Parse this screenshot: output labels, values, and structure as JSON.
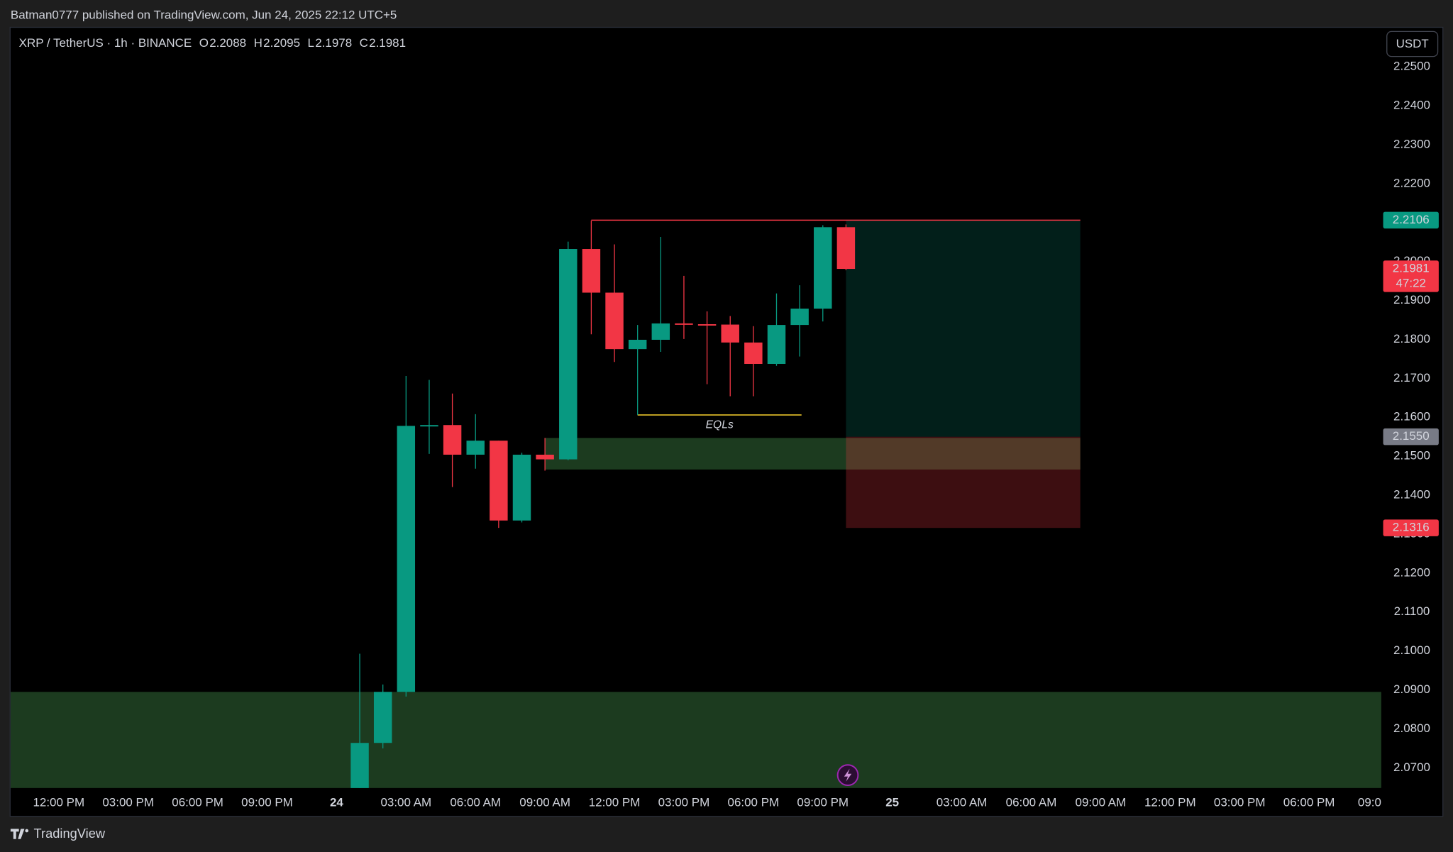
{
  "header": {
    "publisher": "Batman0777 published on TradingView.com, Jun 24, 2025 22:12 UTC+5"
  },
  "footer": {
    "brand": "TradingView"
  },
  "chart_data": {
    "type": "candlestick",
    "title": "XRP / TetherUS · 1h · BINANCE",
    "ohlc_labels": [
      "O",
      "H",
      "L",
      "C"
    ],
    "currency": "USDT",
    "countdown": "47:22",
    "up_color": "#089981",
    "down_color": "#f23645",
    "x": [
      1,
      2,
      3,
      4,
      5,
      6,
      7,
      8,
      9,
      10,
      11,
      12,
      13,
      14,
      15,
      16,
      17,
      18,
      19,
      20,
      21,
      22
    ],
    "open": [
      2.0645,
      2.0764,
      2.0895,
      2.1578,
      2.158,
      2.1504,
      2.154,
      2.1335,
      2.1504,
      2.1492,
      2.2032,
      2.192,
      2.1775,
      2.1799,
      2.1841,
      2.1839,
      2.1838,
      2.1792,
      2.1737,
      2.1837,
      2.1879,
      2.2088
    ],
    "high": [
      2.0993,
      2.0914,
      2.1706,
      2.1696,
      2.1661,
      2.1608,
      2.154,
      2.1509,
      2.1547,
      2.2051,
      2.2105,
      2.2044,
      2.1837,
      2.2063,
      2.1963,
      2.1872,
      2.186,
      2.1834,
      2.1918,
      2.1939,
      2.2093,
      2.2095
    ],
    "low": [
      2.064,
      2.075,
      2.0883,
      2.1506,
      2.1421,
      2.1468,
      2.1316,
      2.133,
      2.1463,
      2.149,
      2.1813,
      2.1742,
      2.1606,
      2.1768,
      2.1801,
      2.1685,
      2.1654,
      2.1654,
      2.1732,
      2.1756,
      2.1846,
      2.1978
    ],
    "close": [
      2.0764,
      2.0895,
      2.1578,
      2.158,
      2.1504,
      2.154,
      2.1335,
      2.1504,
      2.1492,
      2.2032,
      2.192,
      2.1775,
      2.1799,
      2.1841,
      2.1839,
      2.1838,
      2.1792,
      2.1737,
      2.1837,
      2.1879,
      2.2088,
      2.1981
    ],
    "xlim": [
      -14.08,
      45.12
    ],
    "xticks": [
      {
        "value": -12,
        "label": "12:00 PM"
      },
      {
        "value": -9,
        "label": "03:00 PM"
      },
      {
        "value": -6,
        "label": "06:00 PM"
      },
      {
        "value": -3,
        "label": "09:00 PM"
      },
      {
        "value": 0,
        "label": "24"
      },
      {
        "value": 3,
        "label": "03:00 AM"
      },
      {
        "value": 6,
        "label": "06:00 AM"
      },
      {
        "value": 9,
        "label": "09:00 AM"
      },
      {
        "value": 12,
        "label": "12:00 PM"
      },
      {
        "value": 15,
        "label": "03:00 PM"
      },
      {
        "value": 18,
        "label": "06:00 PM"
      },
      {
        "value": 21,
        "label": "09:00 PM"
      },
      {
        "value": 24,
        "label": "25"
      },
      {
        "value": 27,
        "label": "03:00 AM"
      },
      {
        "value": 30,
        "label": "06:00 AM"
      },
      {
        "value": 33,
        "label": "09:00 AM"
      },
      {
        "value": 36,
        "label": "12:00 PM"
      },
      {
        "value": 39,
        "label": "03:00 PM"
      },
      {
        "value": 42,
        "label": "06:00 PM"
      },
      {
        "value": 45,
        "label": "09:0"
      }
    ],
    "ylim": [
      2.0648,
      2.26
    ],
    "yticks": [
      {
        "value": 2.25,
        "label": "2.2500"
      },
      {
        "value": 2.24,
        "label": "2.2400"
      },
      {
        "value": 2.23,
        "label": "2.2300"
      },
      {
        "value": 2.22,
        "label": "2.2200"
      },
      {
        "value": 2.21,
        "label": "2.2100"
      },
      {
        "value": 2.2,
        "label": "2.2000"
      },
      {
        "value": 2.19,
        "label": "2.1900"
      },
      {
        "value": 2.18,
        "label": "2.1800"
      },
      {
        "value": 2.17,
        "label": "2.1700"
      },
      {
        "value": 2.16,
        "label": "2.1600"
      },
      {
        "value": 2.15,
        "label": "2.1500"
      },
      {
        "value": 2.14,
        "label": "2.1400"
      },
      {
        "value": 2.13,
        "label": "2.1300"
      },
      {
        "value": 2.12,
        "label": "2.1200"
      },
      {
        "value": 2.11,
        "label": "2.1100"
      },
      {
        "value": 2.1,
        "label": "2.1000"
      },
      {
        "value": 2.09,
        "label": "2.0900"
      },
      {
        "value": 2.08,
        "label": "2.0800"
      },
      {
        "value": 2.07,
        "label": "2.0700"
      }
    ],
    "zones": [
      {
        "x": [
          -14.08,
          45.12
        ],
        "y": [
          2.0648,
          2.0895
        ],
        "color": "#1c3b1f"
      },
      {
        "x": [
          9,
          32.12
        ],
        "y": [
          2.1466,
          2.1547
        ],
        "color": "#1c3b1f"
      }
    ],
    "position": {
      "x": [
        22,
        32.12
      ],
      "entry": {
        "value": 2.155,
        "label": "2.1550"
      },
      "target": 2.2106,
      "stop": 2.1316,
      "target_color": "rgba(8,153,129,0.2)",
      "stop_color": "rgba(242,54,69,0.25)",
      "entry_tag_color": "#787b86"
    },
    "lines": [
      {
        "x": [
          11,
          32.12
        ],
        "y": 2.2106,
        "color": "#f23645"
      },
      {
        "x": [
          13,
          20.08
        ],
        "y": 2.1606,
        "color": "#e8c32a",
        "label": "EQLs"
      }
    ]
  }
}
